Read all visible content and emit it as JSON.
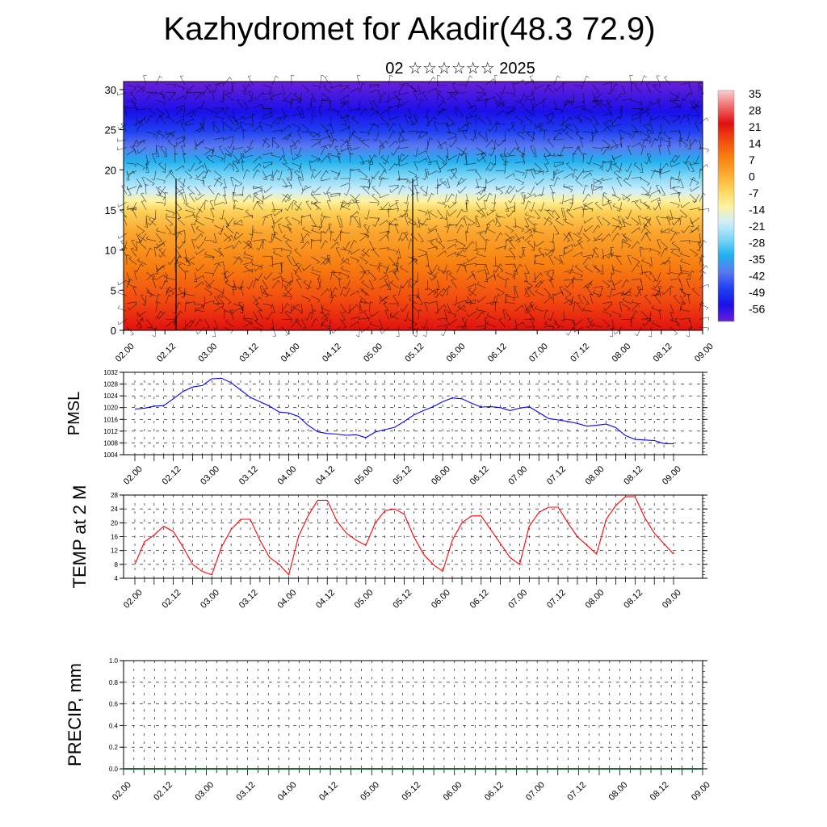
{
  "title": "Kazhydromet for Akadir(48.3 72.9)",
  "subtitle": "02 ☆☆☆☆☆☆ 2025",
  "colorbar": {
    "labels": [
      "35",
      "28",
      "21",
      "14",
      "7",
      "0",
      "-7",
      "-14",
      "-21",
      "-28",
      "-35",
      "-42",
      "-49",
      "-56"
    ],
    "stops": [
      "#f9d0d0",
      "#f06a6a",
      "#e01010",
      "#f24a10",
      "#f77e10",
      "#fba830",
      "#fdd35a",
      "#fff2a0",
      "#cfeefb",
      "#7fd6f7",
      "#22b0ee",
      "#5a78f0",
      "#2040f0",
      "#1a10e8",
      "#6a20d8"
    ]
  },
  "chart_data": [
    {
      "type": "heatmap",
      "title": "",
      "x_ticks": [
        "02.00",
        "02.12",
        "03.00",
        "03.12",
        "04.00",
        "04.12",
        "05.00",
        "05.12",
        "06.00",
        "06.12",
        "07.00",
        "07.12",
        "08.00",
        "08.12",
        "09.00"
      ],
      "y_ticks": [
        "0",
        "5",
        "10",
        "15",
        "20",
        "25",
        "30"
      ],
      "ylim": [
        0,
        31
      ],
      "grid": false,
      "note_overlay": "wind barbs"
    },
    {
      "type": "line",
      "ylabel": "PMSL",
      "y_ticks": [
        "1004",
        "1008",
        "1012",
        "1016",
        "1020",
        "1024",
        "1028",
        "1032"
      ],
      "ylim": [
        1004,
        1032
      ],
      "x_ticks": [
        "02.00",
        "02.12",
        "03.00",
        "03.12",
        "04.00",
        "04.12",
        "05.00",
        "05.12",
        "06.00",
        "06.12",
        "07.00",
        "07.12",
        "08.00",
        "08.12",
        "09.00"
      ],
      "color": "#0000ff",
      "series": [
        {
          "values": [
            1019.5,
            1019.8,
            1020.5,
            1020.7,
            1023,
            1025.5,
            1027,
            1027.5,
            1029.8,
            1030,
            1028.5,
            1026,
            1023.5,
            1022,
            1020.5,
            1018.5,
            1018.2,
            1017,
            1014,
            1011.8,
            1011.2,
            1011,
            1010.6,
            1010.8,
            1009.8,
            1011.7,
            1012.5,
            1013.3,
            1015.3,
            1017.5,
            1019,
            1020.3,
            1022,
            1023.3,
            1023,
            1021.5,
            1020.2,
            1020.3,
            1020,
            1019,
            1019.8,
            1020.3,
            1018.3,
            1016.3,
            1015.8,
            1015.3,
            1014.6,
            1013.7,
            1014,
            1014.4,
            1013.2,
            1010.5,
            1009.2,
            1009,
            1008.8,
            1007.8,
            1007.7
          ]
        }
      ],
      "grid": true
    },
    {
      "type": "line",
      "ylabel": "TEMP at 2 M",
      "y_ticks": [
        "4",
        "8",
        "12",
        "16",
        "20",
        "24",
        "28"
      ],
      "ylim": [
        4,
        28
      ],
      "x_ticks": [
        "02.00",
        "02.12",
        "03.00",
        "03.12",
        "04.00",
        "04.12",
        "05.00",
        "05.12",
        "06.00",
        "06.12",
        "07.00",
        "07.12",
        "08.00",
        "08.12",
        "09.00"
      ],
      "color": "#ff0000",
      "series": [
        {
          "values": [
            8,
            14.5,
            16.5,
            19,
            17.5,
            13,
            8,
            6,
            5,
            13,
            18,
            21,
            21,
            15,
            10,
            8,
            5,
            16,
            22,
            26.5,
            26.5,
            20.5,
            17,
            15,
            13.5,
            20,
            23.5,
            24,
            22.5,
            16,
            11,
            8,
            6,
            15,
            20,
            22,
            22,
            18,
            14,
            10,
            8,
            19,
            23,
            24.5,
            24.5,
            20,
            16,
            13.5,
            11,
            21,
            25,
            27.5,
            27.5,
            21.5,
            17,
            14,
            11
          ]
        }
      ],
      "grid": true
    },
    {
      "type": "bar",
      "ylabel": "PRECIP, mm",
      "y_ticks": [
        "0.0",
        "0.2",
        "0.4",
        "0.6",
        "0.8",
        "1.0"
      ],
      "ylim": [
        0,
        1
      ],
      "x_ticks": [
        "02.00",
        "02.12",
        "03.00",
        "03.12",
        "04.00",
        "04.12",
        "05.00",
        "05.12",
        "06.00",
        "06.12",
        "07.00",
        "07.12",
        "08.00",
        "08.12",
        "09.00"
      ],
      "series": [
        {
          "values": []
        }
      ],
      "grid": true
    }
  ]
}
